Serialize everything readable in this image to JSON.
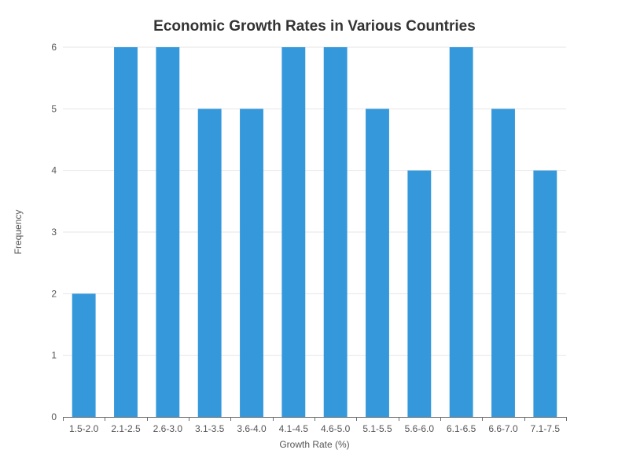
{
  "chart_data": {
    "type": "bar",
    "title": "Economic Growth Rates in Various Countries",
    "xlabel": "Growth Rate (%)",
    "ylabel": "Frequency",
    "categories": [
      "1.5-2.0",
      "2.1-2.5",
      "2.6-3.0",
      "3.1-3.5",
      "3.6-4.0",
      "4.1-4.5",
      "4.6-5.0",
      "5.1-5.5",
      "5.6-6.0",
      "6.1-6.5",
      "6.6-7.0",
      "7.1-7.5"
    ],
    "values": [
      2,
      6,
      6,
      5,
      5,
      6,
      6,
      5,
      4,
      6,
      5,
      4
    ],
    "ylim": [
      0,
      6
    ],
    "yticks": [
      "0",
      "1",
      "2",
      "3",
      "4",
      "5",
      "6"
    ],
    "grid": true,
    "bar_color": "#3498db"
  }
}
